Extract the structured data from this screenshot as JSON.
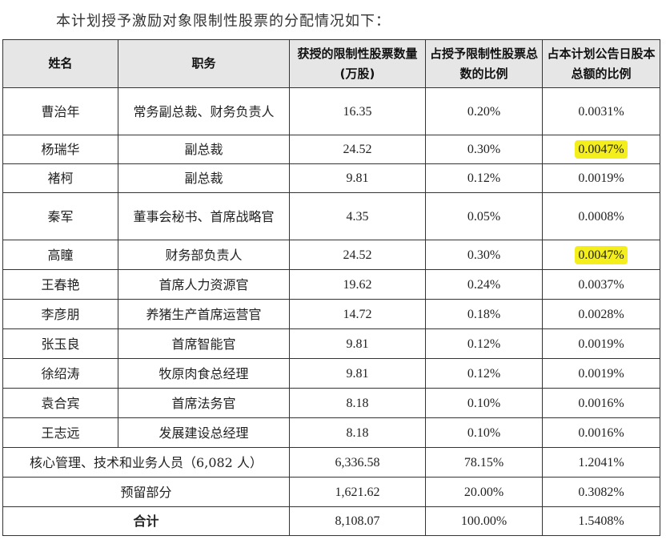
{
  "intro": "本计划授予激励对象限制性股票的分配情况如下：",
  "headers": {
    "name": "姓名",
    "position": "职务",
    "shares": "获授的限制性股票数量(万股)",
    "pct_grant": "占授予限制性股票总数的比例",
    "pct_total": "占本计划公告日股本总额的比例"
  },
  "rows": [
    {
      "name": "曹治年",
      "position": "常务副总裁、财务负责人",
      "shares": "16.35",
      "pct_grant": "0.20%",
      "pct_total": "0.0031%",
      "highlight": false
    },
    {
      "name": "杨瑞华",
      "position": "副总裁",
      "shares": "24.52",
      "pct_grant": "0.30%",
      "pct_total": "0.0047%",
      "highlight": true
    },
    {
      "name": "褚柯",
      "position": "副总裁",
      "shares": "9.81",
      "pct_grant": "0.12%",
      "pct_total": "0.0019%",
      "highlight": false
    },
    {
      "name": "秦军",
      "position": "董事会秘书、首席战略官",
      "shares": "4.35",
      "pct_grant": "0.05%",
      "pct_total": "0.0008%",
      "highlight": false
    },
    {
      "name": "高瞳",
      "position": "财务部负责人",
      "shares": "24.52",
      "pct_grant": "0.30%",
      "pct_total": "0.0047%",
      "highlight": true
    },
    {
      "name": "王春艳",
      "position": "首席人力资源官",
      "shares": "19.62",
      "pct_grant": "0.24%",
      "pct_total": "0.0037%",
      "highlight": false
    },
    {
      "name": "李彦朋",
      "position": "养猪生产首席运营官",
      "shares": "14.72",
      "pct_grant": "0.18%",
      "pct_total": "0.0028%",
      "highlight": false
    },
    {
      "name": "张玉良",
      "position": "首席智能官",
      "shares": "9.81",
      "pct_grant": "0.12%",
      "pct_total": "0.0019%",
      "highlight": false
    },
    {
      "name": "徐绍涛",
      "position": "牧原肉食总经理",
      "shares": "9.81",
      "pct_grant": "0.12%",
      "pct_total": "0.0019%",
      "highlight": false
    },
    {
      "name": "袁合宾",
      "position": "首席法务官",
      "shares": "8.18",
      "pct_grant": "0.10%",
      "pct_total": "0.0016%",
      "highlight": false
    },
    {
      "name": "王志远",
      "position": "发展建设总经理",
      "shares": "8.18",
      "pct_grant": "0.10%",
      "pct_total": "0.0016%",
      "highlight": false
    }
  ],
  "core": {
    "label": "核心管理、技术和业务人员（6,082 人）",
    "shares": "6,336.58",
    "pct_grant": "78.15%",
    "pct_total": "1.2041%"
  },
  "reserved": {
    "label": "预留部分",
    "shares": "1,621.62",
    "pct_grant": "20.00%",
    "pct_total": "0.3082%"
  },
  "total": {
    "label": "合计",
    "shares": "8,108.07",
    "pct_grant": "100.00%",
    "pct_total": "1.5408%"
  },
  "colors": {
    "highlight": "#f3ee1c",
    "header_bg": "#e6e6e6"
  }
}
